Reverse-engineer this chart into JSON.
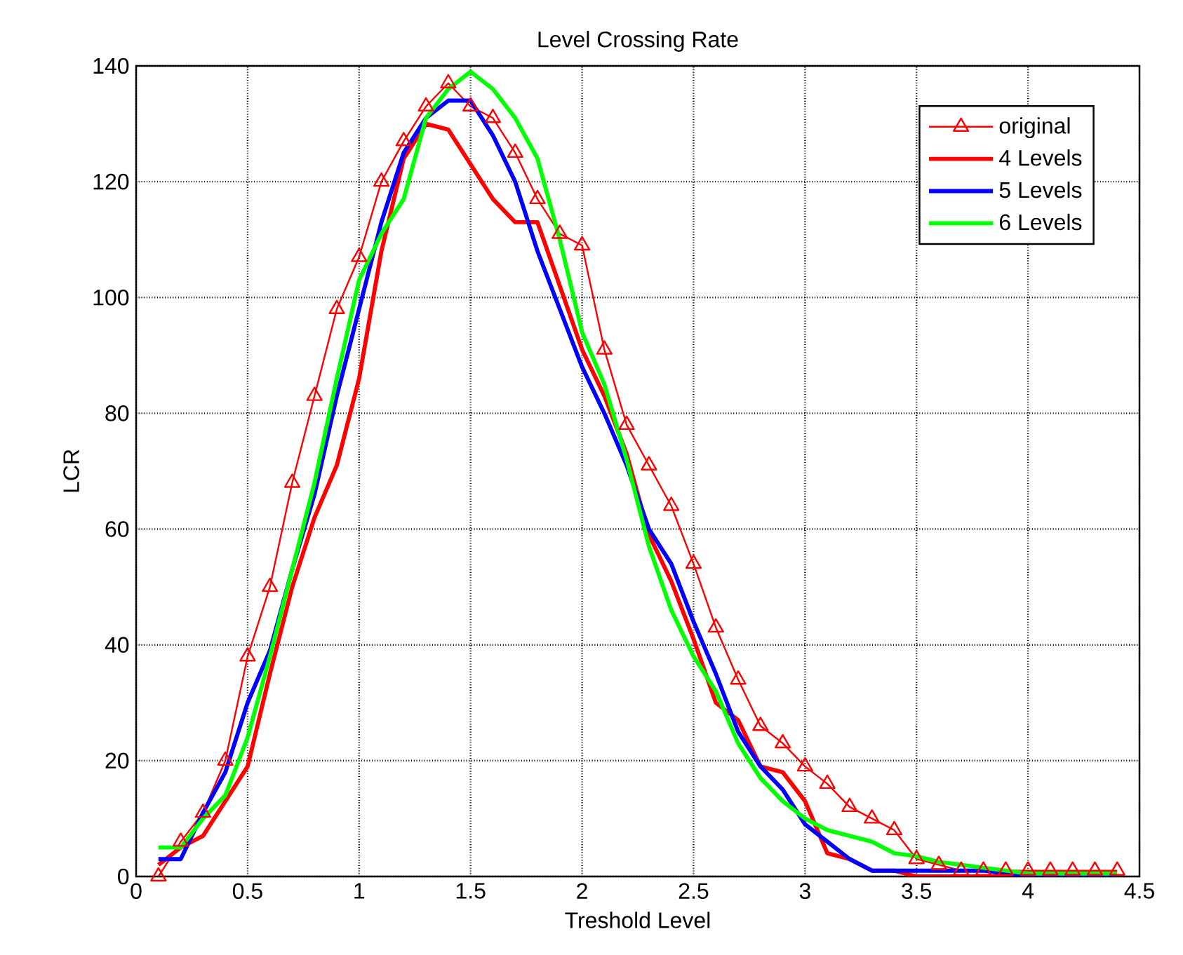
{
  "chart_data": {
    "type": "line",
    "title": "Level Crossing Rate",
    "xlabel": "Treshold Level",
    "ylabel": "LCR",
    "x": [
      0.1,
      0.2,
      0.3,
      0.4,
      0.5,
      0.6,
      0.7,
      0.8,
      0.9,
      1.0,
      1.1,
      1.2,
      1.3,
      1.4,
      1.5,
      1.6,
      1.7,
      1.8,
      1.9,
      2.0,
      2.1,
      2.2,
      2.3,
      2.4,
      2.5,
      2.6,
      2.7,
      2.8,
      2.9,
      3.0,
      3.1,
      3.2,
      3.3,
      3.4,
      3.5,
      3.6,
      3.7,
      3.8,
      3.9,
      4.0,
      4.1,
      4.2,
      4.3,
      4.4
    ],
    "series": [
      {
        "name": "original",
        "color": "#ff0000",
        "marker": "triangle",
        "values": [
          0,
          6,
          11,
          20,
          38,
          50,
          68,
          83,
          98,
          107,
          120,
          127,
          133,
          137,
          133,
          131,
          125,
          117,
          111,
          109,
          91,
          78,
          71,
          64,
          54,
          43,
          34,
          26,
          23,
          19,
          16,
          12,
          10,
          8,
          3,
          2,
          1,
          1,
          1,
          1,
          1,
          1,
          1,
          1
        ]
      },
      {
        "name": "4 Levels",
        "color": "#ff0000",
        "marker": "none",
        "values": [
          2,
          5,
          7,
          13,
          19,
          35,
          50,
          62,
          71,
          86,
          108,
          124,
          130,
          129,
          123,
          117,
          113,
          113,
          102,
          91,
          83,
          73,
          59,
          51,
          41,
          30,
          27,
          19,
          18,
          13,
          4,
          3,
          1,
          1,
          0,
          0,
          0,
          0,
          0,
          0,
          0,
          0,
          0,
          0
        ]
      },
      {
        "name": "5 Levels",
        "color": "#0000ff",
        "marker": "none",
        "values": [
          3,
          3,
          11,
          18,
          30,
          39,
          53,
          66,
          83,
          98,
          113,
          125,
          131,
          134,
          134,
          128,
          120,
          108,
          98,
          88,
          80,
          71,
          60,
          54,
          44,
          35,
          25,
          19,
          15,
          9,
          6,
          3,
          1,
          1,
          1,
          1,
          1,
          1,
          0.5,
          0,
          0,
          0,
          0,
          0
        ]
      },
      {
        "name": "6 Levels",
        "color": "#00ff00",
        "marker": "none",
        "values": [
          5,
          5,
          10,
          14,
          24,
          38,
          53,
          68,
          86,
          103,
          111,
          117,
          131,
          136,
          139,
          136,
          131,
          124,
          110,
          94,
          85,
          72,
          57,
          46,
          38,
          32,
          23,
          17,
          13,
          10,
          8,
          7,
          6,
          4,
          3.5,
          2.5,
          2,
          1.5,
          1,
          0.5,
          0.5,
          0.5,
          0.5,
          0.5
        ]
      }
    ],
    "xlim": [
      0,
      4.5
    ],
    "xticks": [
      0,
      0.5,
      1,
      1.5,
      2,
      2.5,
      3,
      3.5,
      4,
      4.5
    ],
    "ylim": [
      0,
      140
    ],
    "yticks": [
      0,
      20,
      40,
      60,
      80,
      100,
      120,
      140
    ],
    "grid": true,
    "legend": "top right",
    "line_style": "solid"
  }
}
